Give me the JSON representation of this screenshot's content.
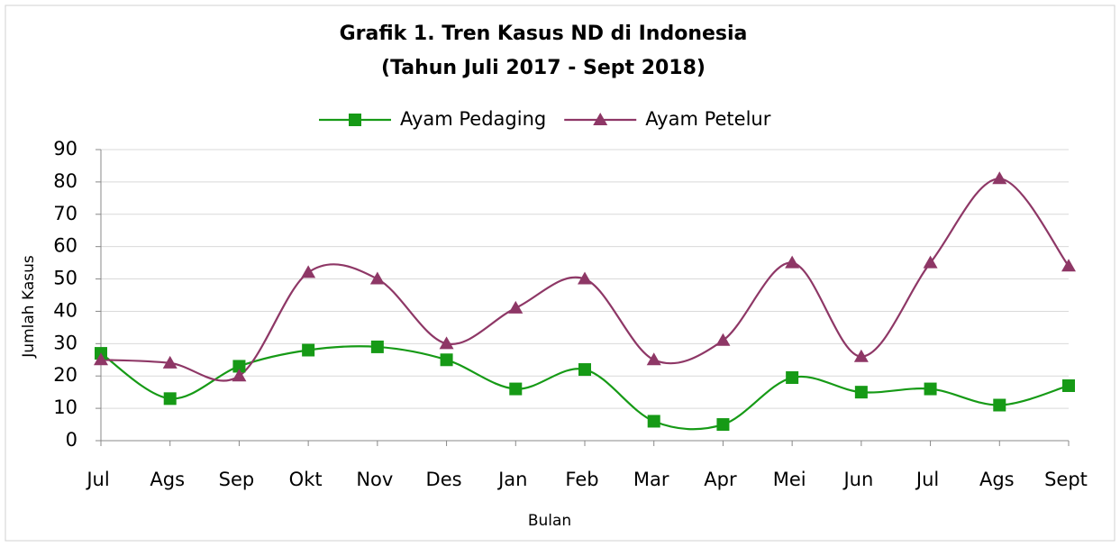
{
  "chart_data": {
    "type": "line",
    "title": "Grafik 1. Tren Kasus ND di Indonesia",
    "subtitle": "(Tahun Juli 2017 - Sept 2018)",
    "x_label": "Bulan",
    "y_label": "Jumlah Kasus",
    "categories": [
      "Jul",
      "Ags",
      "Sep",
      "Okt",
      "Nov",
      "Des",
      "Jan",
      "Feb",
      "Mar",
      "Apr",
      "Mei",
      "Jun",
      "Jul",
      "Ags",
      "Sept"
    ],
    "series": [
      {
        "name": "Ayam Pedaging",
        "color": "#169a16",
        "marker": "square",
        "values": [
          27,
          13,
          23,
          28,
          29,
          25,
          16,
          22,
          6,
          5,
          19.5,
          15,
          16,
          11,
          17
        ]
      },
      {
        "name": "Ayam Petelur",
        "color": "#8e3766",
        "marker": "triangle",
        "values": [
          25,
          24,
          20,
          52,
          50,
          30,
          41,
          50,
          25,
          31,
          55,
          26,
          55,
          81,
          54
        ]
      }
    ],
    "ylim": [
      0,
      90
    ],
    "yticks": [
      0,
      10,
      20,
      30,
      40,
      50,
      60,
      70,
      80,
      90
    ],
    "grid": true,
    "smooth": true,
    "legend": "top"
  }
}
